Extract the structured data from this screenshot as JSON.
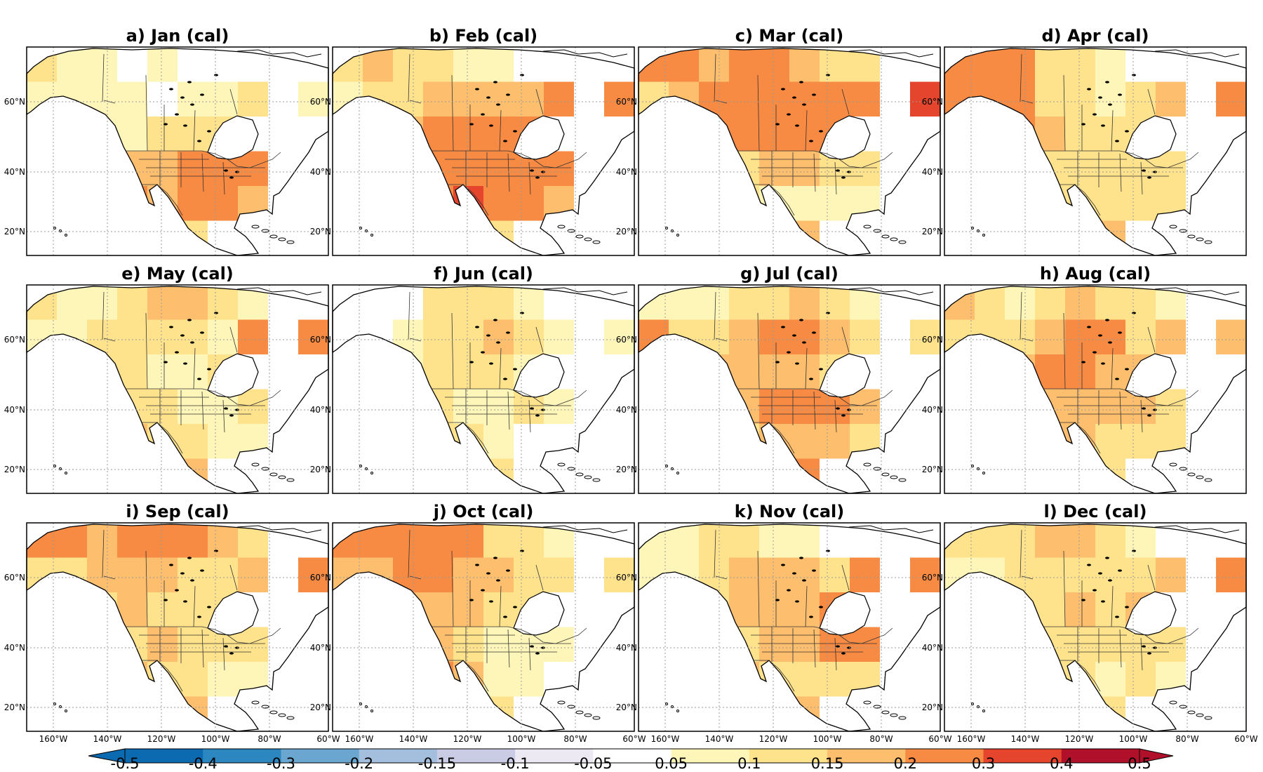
{
  "panels": [
    {
      "label": "a) Jan (cal)",
      "cells": [
        [
          0.12,
          0.08,
          0.05,
          0.03,
          0.05,
          0.02,
          0.02,
          0.04,
          0.0,
          0.0
        ],
        [
          0.06,
          0.05,
          0.08,
          0.06,
          0.04,
          0.05,
          0.08,
          0.1,
          0.0,
          0.08
        ],
        [
          0.0,
          0.04,
          0.06,
          0.08,
          0.1,
          0.12,
          0.14,
          0.0,
          0.0,
          0.0
        ],
        [
          0.0,
          0.0,
          0.1,
          0.16,
          0.18,
          0.2,
          0.22,
          0.22,
          0.0,
          0.0
        ],
        [
          0.0,
          0.0,
          0.08,
          0.2,
          0.18,
          0.22,
          0.26,
          0.18,
          0.0,
          0.0
        ],
        [
          0.0,
          0.0,
          0.0,
          0.14,
          0.16,
          0.12,
          0.0,
          0.0,
          0.0,
          0.0
        ]
      ]
    },
    {
      "label": "b) Feb (cal)",
      "cells": [
        [
          0.14,
          0.16,
          0.12,
          0.1,
          0.08,
          0.06,
          0.04,
          0.04,
          0.0,
          0.0
        ],
        [
          0.08,
          0.1,
          0.14,
          0.16,
          0.18,
          0.16,
          0.18,
          0.22,
          0.0,
          0.2
        ],
        [
          0.0,
          0.06,
          0.18,
          0.22,
          0.2,
          0.22,
          0.24,
          0.0,
          0.0,
          0.0
        ],
        [
          0.0,
          0.0,
          0.12,
          0.2,
          0.22,
          0.26,
          0.24,
          0.22,
          0.0,
          0.0
        ],
        [
          0.0,
          0.0,
          0.1,
          0.28,
          0.3,
          0.2,
          0.22,
          0.16,
          0.0,
          0.0
        ],
        [
          0.0,
          0.0,
          0.0,
          0.16,
          0.14,
          0.1,
          0.0,
          0.0,
          0.0,
          0.0
        ]
      ]
    },
    {
      "label": "c) Mar (cal)",
      "cells": [
        [
          0.22,
          0.2,
          0.18,
          0.2,
          0.22,
          0.16,
          0.12,
          0.1,
          0.0,
          0.0
        ],
        [
          0.14,
          0.16,
          0.24,
          0.26,
          0.22,
          0.24,
          0.2,
          0.26,
          0.0,
          0.3
        ],
        [
          0.0,
          0.1,
          0.22,
          0.26,
          0.24,
          0.22,
          0.2,
          0.0,
          0.0,
          0.0
        ],
        [
          0.0,
          0.0,
          0.1,
          0.14,
          0.18,
          0.16,
          0.14,
          0.12,
          0.0,
          0.0
        ],
        [
          0.0,
          0.0,
          0.06,
          0.1,
          0.08,
          0.06,
          0.08,
          0.06,
          0.0,
          0.0
        ],
        [
          0.0,
          0.0,
          0.0,
          0.08,
          0.12,
          0.16,
          0.0,
          0.0,
          0.0,
          0.0
        ]
      ]
    },
    {
      "label": "d) Apr (cal)",
      "cells": [
        [
          0.28,
          0.24,
          0.2,
          0.14,
          0.1,
          0.06,
          0.04,
          0.04,
          0.0,
          0.0
        ],
        [
          0.2,
          0.22,
          0.26,
          0.14,
          0.1,
          0.08,
          0.12,
          0.16,
          0.0,
          0.2
        ],
        [
          0.0,
          0.1,
          0.2,
          0.16,
          0.12,
          0.1,
          0.14,
          0.0,
          0.0,
          0.0
        ],
        [
          0.0,
          0.0,
          0.1,
          0.12,
          0.14,
          0.12,
          0.14,
          0.12,
          0.0,
          0.0
        ],
        [
          0.0,
          0.0,
          0.08,
          0.14,
          0.12,
          0.1,
          0.12,
          0.1,
          0.0,
          0.0
        ],
        [
          0.0,
          0.0,
          0.0,
          0.1,
          0.14,
          0.16,
          0.0,
          0.0,
          0.0,
          0.0
        ]
      ]
    },
    {
      "label": "e) May (cal)",
      "cells": [
        [
          0.12,
          0.08,
          0.06,
          0.14,
          0.16,
          0.18,
          0.1,
          0.06,
          0.0,
          0.0
        ],
        [
          0.06,
          0.06,
          0.1,
          0.12,
          0.14,
          0.12,
          0.06,
          0.2,
          0.0,
          0.22
        ],
        [
          0.0,
          0.06,
          0.1,
          0.12,
          0.08,
          0.06,
          0.1,
          0.0,
          0.0,
          0.0
        ],
        [
          0.0,
          0.0,
          0.08,
          0.12,
          0.1,
          0.06,
          0.08,
          0.1,
          0.0,
          0.0
        ],
        [
          0.0,
          0.0,
          0.06,
          0.16,
          0.14,
          0.1,
          0.08,
          0.06,
          0.0,
          0.0
        ],
        [
          0.0,
          0.0,
          0.0,
          0.12,
          0.22,
          0.18,
          0.0,
          0.0,
          0.0,
          0.0
        ]
      ]
    },
    {
      "label": "f) Jun (cal)",
      "cells": [
        [
          0.02,
          0.02,
          0.03,
          0.1,
          0.12,
          0.14,
          0.08,
          0.04,
          0.0,
          0.0
        ],
        [
          0.02,
          0.04,
          0.06,
          0.1,
          0.14,
          0.16,
          0.12,
          0.06,
          0.0,
          0.06
        ],
        [
          0.0,
          0.04,
          0.08,
          0.1,
          0.12,
          0.1,
          0.08,
          0.0,
          0.0,
          0.0
        ],
        [
          0.0,
          0.0,
          0.06,
          0.1,
          0.08,
          0.06,
          0.1,
          0.08,
          0.0,
          0.0
        ],
        [
          0.0,
          0.0,
          0.04,
          0.14,
          0.12,
          0.06,
          0.04,
          0.04,
          0.0,
          0.0
        ],
        [
          0.0,
          0.0,
          0.0,
          0.1,
          0.16,
          0.12,
          0.0,
          0.0,
          0.0,
          0.0
        ]
      ]
    },
    {
      "label": "g) Jul (cal)",
      "cells": [
        [
          0.08,
          0.06,
          0.06,
          0.12,
          0.14,
          0.16,
          0.1,
          0.06,
          0.0,
          0.0
        ],
        [
          0.24,
          0.1,
          0.14,
          0.18,
          0.2,
          0.22,
          0.18,
          0.1,
          0.0,
          0.12
        ],
        [
          0.0,
          0.1,
          0.16,
          0.16,
          0.18,
          0.16,
          0.14,
          0.0,
          0.0,
          0.0
        ],
        [
          0.0,
          0.0,
          0.12,
          0.16,
          0.2,
          0.22,
          0.2,
          0.18,
          0.0,
          0.0
        ],
        [
          0.0,
          0.0,
          0.1,
          0.14,
          0.16,
          0.18,
          0.16,
          0.14,
          0.0,
          0.0
        ],
        [
          0.0,
          0.0,
          0.0,
          0.12,
          0.18,
          0.2,
          0.0,
          0.0,
          0.0,
          0.0
        ]
      ]
    },
    {
      "label": "h) Aug (cal)",
      "cells": [
        [
          0.18,
          0.1,
          0.08,
          0.14,
          0.16,
          0.14,
          0.1,
          0.06,
          0.0,
          0.0
        ],
        [
          0.1,
          0.1,
          0.12,
          0.18,
          0.22,
          0.2,
          0.14,
          0.16,
          0.0,
          0.18
        ],
        [
          0.0,
          0.12,
          0.16,
          0.2,
          0.22,
          0.18,
          0.16,
          0.0,
          0.0,
          0.0
        ],
        [
          0.0,
          0.0,
          0.16,
          0.18,
          0.16,
          0.18,
          0.16,
          0.14,
          0.0,
          0.0
        ],
        [
          0.0,
          0.0,
          0.12,
          0.18,
          0.16,
          0.14,
          0.12,
          0.1,
          0.0,
          0.0
        ],
        [
          0.0,
          0.0,
          0.0,
          0.14,
          0.16,
          0.14,
          0.0,
          0.0,
          0.0,
          0.0
        ]
      ]
    },
    {
      "label": "i) Sep (cal)",
      "cells": [
        [
          0.22,
          0.2,
          0.18,
          0.22,
          0.24,
          0.22,
          0.16,
          0.1,
          0.0,
          0.0
        ],
        [
          0.14,
          0.14,
          0.16,
          0.18,
          0.16,
          0.14,
          0.14,
          0.18,
          0.0,
          0.2
        ],
        [
          0.0,
          0.12,
          0.14,
          0.16,
          0.14,
          0.12,
          0.12,
          0.0,
          0.0,
          0.0
        ],
        [
          0.0,
          0.0,
          0.1,
          0.14,
          0.16,
          0.14,
          0.12,
          0.12,
          0.0,
          0.0
        ],
        [
          0.0,
          0.0,
          0.1,
          0.16,
          0.12,
          0.1,
          0.08,
          0.08,
          0.0,
          0.0
        ],
        [
          0.0,
          0.0,
          0.0,
          0.12,
          0.16,
          0.18,
          0.0,
          0.0,
          0.0,
          0.0
        ]
      ]
    },
    {
      "label": "j) Oct (cal)",
      "cells": [
        [
          0.26,
          0.24,
          0.22,
          0.24,
          0.2,
          0.14,
          0.1,
          0.06,
          0.0,
          0.0
        ],
        [
          0.18,
          0.18,
          0.24,
          0.2,
          0.18,
          0.16,
          0.12,
          0.1,
          0.0,
          0.1
        ],
        [
          0.0,
          0.12,
          0.18,
          0.18,
          0.16,
          0.12,
          0.1,
          0.0,
          0.0,
          0.0
        ],
        [
          0.0,
          0.0,
          0.14,
          0.16,
          0.12,
          0.08,
          0.06,
          0.06,
          0.0,
          0.0
        ],
        [
          0.0,
          0.0,
          0.12,
          0.22,
          0.18,
          0.08,
          0.06,
          0.04,
          0.0,
          0.0
        ],
        [
          0.0,
          0.0,
          0.0,
          0.2,
          0.16,
          0.12,
          0.0,
          0.0,
          0.0,
          0.0
        ]
      ]
    },
    {
      "label": "k) Nov (cal)",
      "cells": [
        [
          0.08,
          0.08,
          0.1,
          0.1,
          0.08,
          0.06,
          0.04,
          0.04,
          0.0,
          0.0
        ],
        [
          0.06,
          0.06,
          0.12,
          0.16,
          0.18,
          0.16,
          0.14,
          0.22,
          0.0,
          0.24
        ],
        [
          0.0,
          0.06,
          0.14,
          0.18,
          0.18,
          0.18,
          0.2,
          0.0,
          0.0,
          0.0
        ],
        [
          0.0,
          0.0,
          0.1,
          0.14,
          0.16,
          0.18,
          0.2,
          0.2,
          0.0,
          0.0
        ],
        [
          0.0,
          0.0,
          0.08,
          0.16,
          0.14,
          0.12,
          0.14,
          0.1,
          0.0,
          0.0
        ],
        [
          0.0,
          0.0,
          0.0,
          0.14,
          0.2,
          0.18,
          0.0,
          0.0,
          0.0,
          0.0
        ]
      ]
    },
    {
      "label": "l) Dec (cal)",
      "cells": [
        [
          0.1,
          0.12,
          0.14,
          0.16,
          0.18,
          0.12,
          0.06,
          0.04,
          0.0,
          0.0
        ],
        [
          0.06,
          0.08,
          0.12,
          0.14,
          0.14,
          0.12,
          0.12,
          0.18,
          0.0,
          0.24
        ],
        [
          0.0,
          0.06,
          0.1,
          0.14,
          0.16,
          0.14,
          0.16,
          0.0,
          0.0,
          0.0
        ],
        [
          0.0,
          0.0,
          0.08,
          0.1,
          0.12,
          0.14,
          0.12,
          0.14,
          0.0,
          0.0
        ],
        [
          0.0,
          0.0,
          0.06,
          0.1,
          0.1,
          0.08,
          0.1,
          0.08,
          0.0,
          0.0
        ],
        [
          0.0,
          0.0,
          0.0,
          0.1,
          0.12,
          0.14,
          0.0,
          0.0,
          0.0,
          0.0
        ]
      ]
    }
  ],
  "lat_labels": [
    "60°N",
    "40°N",
    "20°N"
  ],
  "lon_labels": [
    "160°W",
    "140°W",
    "120°W",
    "100°W",
    "80°W",
    "60°W"
  ],
  "colorbar": {
    "ticks": [
      "-0.5",
      "-0.4",
      "-0.3",
      "-0.2",
      "-0.15",
      "-0.1",
      "-0.05",
      "0.05",
      "0.1",
      "0.15",
      "0.2",
      "0.3",
      "0.4",
      "0.5"
    ],
    "bins": [
      {
        "lo": -0.5,
        "hi": -0.4,
        "color": "#0c6ab0"
      },
      {
        "lo": -0.4,
        "hi": -0.3,
        "color": "#2c86c0"
      },
      {
        "lo": -0.3,
        "hi": -0.2,
        "color": "#6aa6d0"
      },
      {
        "lo": -0.2,
        "hi": -0.15,
        "color": "#a4bedd"
      },
      {
        "lo": -0.15,
        "hi": -0.1,
        "color": "#c9cce4"
      },
      {
        "lo": -0.1,
        "hi": -0.05,
        "color": "#ece9f2"
      },
      {
        "lo": -0.05,
        "hi": 0.05,
        "color": "#ffffff"
      },
      {
        "lo": 0.05,
        "hi": 0.1,
        "color": "#fef6b8"
      },
      {
        "lo": 0.1,
        "hi": 0.15,
        "color": "#fee28c"
      },
      {
        "lo": 0.15,
        "hi": 0.2,
        "color": "#fdbe6e"
      },
      {
        "lo": 0.2,
        "hi": 0.3,
        "color": "#f88b44"
      },
      {
        "lo": 0.3,
        "hi": 0.4,
        "color": "#e5452c"
      },
      {
        "lo": 0.4,
        "hi": 0.5,
        "color": "#b1102a"
      }
    ],
    "under_color": "#0c6ab0",
    "over_color": "#b1102a"
  },
  "colors": {
    "grid": "#9a9a9a",
    "frame": "#000000",
    "coast": "#000000",
    "border": "#333333"
  }
}
